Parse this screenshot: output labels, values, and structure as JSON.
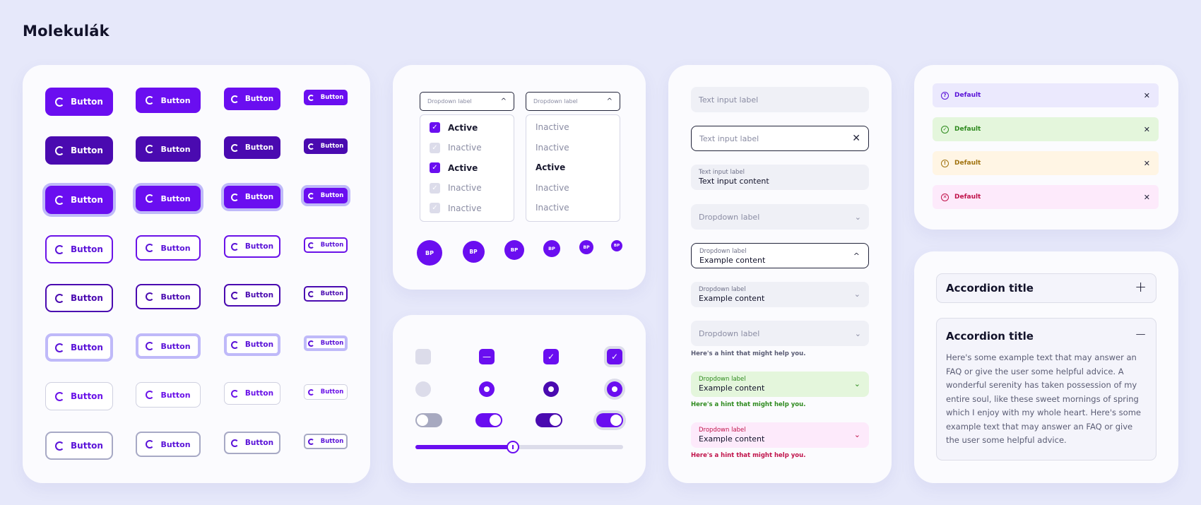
{
  "title": "Molekulák",
  "buttons": {
    "label": "Button"
  },
  "dropdowns": {
    "label": "Dropdown label",
    "left": [
      {
        "label": "Active",
        "state": "checked"
      },
      {
        "label": "Inactive",
        "state": "disabled"
      },
      {
        "label": "Active",
        "state": "checked"
      },
      {
        "label": "Inactive",
        "state": "disabled"
      },
      {
        "label": "Inactive",
        "state": "disabled"
      }
    ],
    "right": [
      {
        "label": "Inactive"
      },
      {
        "label": "Inactive"
      },
      {
        "label": "Active"
      },
      {
        "label": "Inactive"
      },
      {
        "label": "Inactive"
      }
    ]
  },
  "avatar": {
    "initials": "BP"
  },
  "fields": {
    "text_input_label": "Text input label",
    "text_input_content": "Text input content",
    "dropdown_label": "Dropdown label",
    "example_content": "Example content",
    "hint": "Here's a hint that might help you."
  },
  "alerts": [
    {
      "label": "Default",
      "type": "info",
      "color": "#5a12d8",
      "bg": "#ebe9fd"
    },
    {
      "label": "Default",
      "type": "success",
      "color": "#2e8a1e",
      "bg": "#e4f6dc"
    },
    {
      "label": "Default",
      "type": "warning",
      "color": "#a0720e",
      "bg": "#fff5e4"
    },
    {
      "label": "Default",
      "type": "error",
      "color": "#c0124a",
      "bg": "#fdeafb"
    }
  ],
  "accordion": {
    "title": "Accordion title",
    "body": "Here's some example text that may answer an FAQ or give the user some helpful advice. A wonderful serenity has taken possession of my entire soul, like these sweet mornings of spring which I enjoy with my whole heart. Here's some example text that may answer an FAQ or give the user some helpful advice."
  },
  "slider": {
    "value": 0.47
  },
  "colors": {
    "accent": "#6a0ef0",
    "accent_dark": "#4a0ab0",
    "focus_ring": "#bfb9f9"
  }
}
